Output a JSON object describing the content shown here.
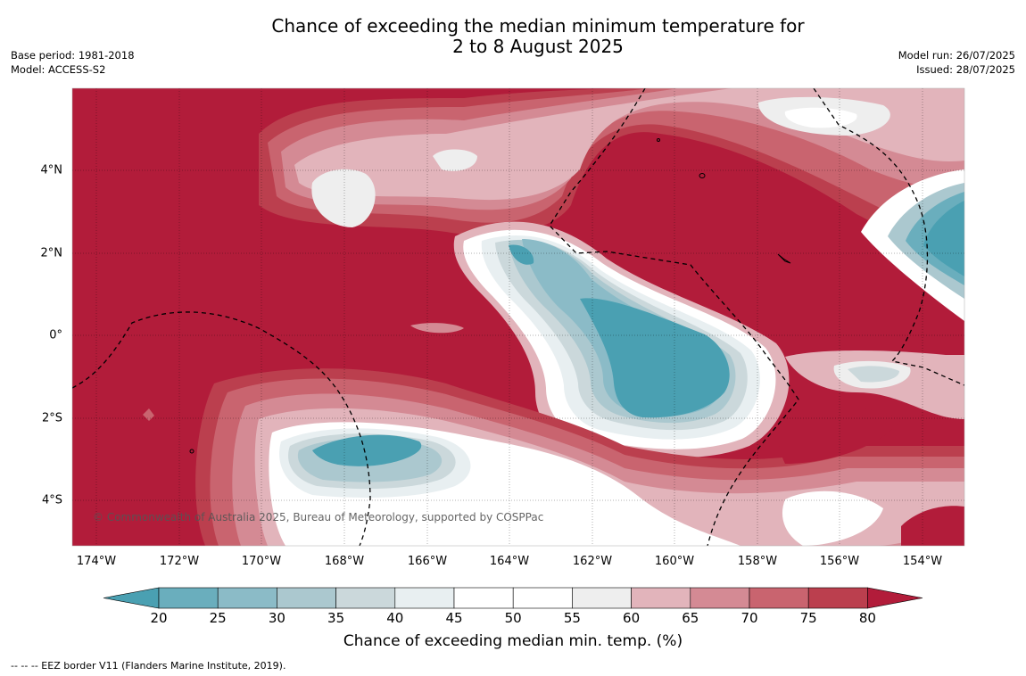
{
  "title_line1": "Chance of exceeding the median minimum temperature for",
  "title_line2": "2 to 8 August 2025",
  "meta_left": {
    "base_period": "Base period: 1981-2018",
    "model": "Model: ACCESS-S2"
  },
  "meta_right": {
    "model_run": "Model run: 26/07/2025",
    "issued": "Issued: 28/07/2025"
  },
  "lat_labels": [
    "4°N",
    "2°N",
    "0°",
    "2°S",
    "4°S"
  ],
  "lon_labels": [
    "174°W",
    "172°W",
    "170°W",
    "168°W",
    "166°W",
    "164°W",
    "162°W",
    "160°W",
    "158°W",
    "156°W",
    "154°W"
  ],
  "copyright": "© Commonwealth of Australia 2025, Bureau of Meteorology, supported by COSPPac",
  "colorbar": {
    "ticks": [
      "20",
      "25",
      "30",
      "35",
      "40",
      "45",
      "50",
      "55",
      "60",
      "65",
      "70",
      "75",
      "80"
    ],
    "label": "Chance of exceeding median min. temp. (%)",
    "colors": [
      "#4aa0b2",
      "#6aaebd",
      "#8bbbc7",
      "#abc8cf",
      "#cbd8db",
      "#e8eff1",
      "#ffffff",
      "#ffffff",
      "#eeeeee",
      "#e2b4bb",
      "#d48a94",
      "#c9646f",
      "#bb3f4e",
      "#b21c3a"
    ]
  },
  "footnote": "--  --  -- EEZ border V11 (Flanders Marine Institute, 2019)."
}
